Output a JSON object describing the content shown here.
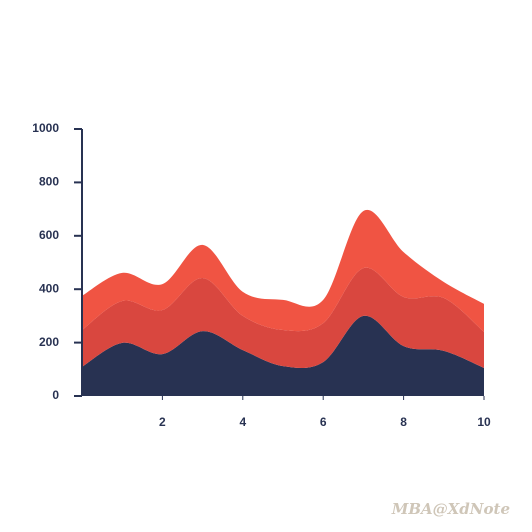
{
  "chart_data": {
    "type": "stacked-area",
    "x": [
      0,
      1,
      2,
      3,
      4,
      5,
      6,
      7,
      8,
      9,
      10
    ],
    "series": [
      {
        "color": "#283252",
        "values": [
          109,
          199,
          157,
          243,
          172,
          112,
          127,
          300,
          187,
          169,
          105
        ]
      },
      {
        "color": "#d9473f",
        "values": [
          138,
          157,
          165,
          199,
          128,
          135,
          146,
          179,
          184,
          198,
          135
        ]
      },
      {
        "color": "#f05443",
        "values": [
          128,
          105,
          97,
          124,
          90,
          113,
          87,
          214,
          168,
          60,
          105
        ]
      }
    ],
    "xlim": [
      0,
      10
    ],
    "xticks": [
      2,
      4,
      6,
      8,
      10
    ],
    "ylim": [
      0,
      1000
    ],
    "yticks": [
      0,
      200,
      400,
      600,
      800,
      1000
    ]
  },
  "watermark": "MBA@XdNote"
}
